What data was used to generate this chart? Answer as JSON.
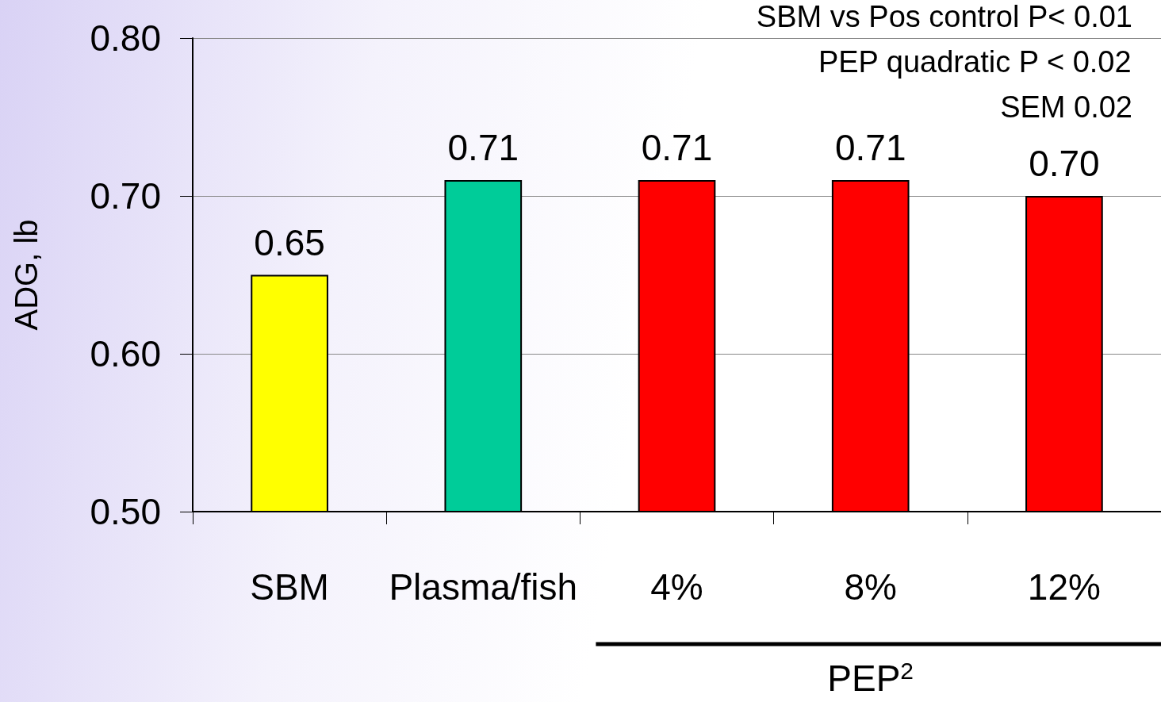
{
  "chart_data": {
    "type": "bar",
    "ylabel": "ADG, lb",
    "categories": [
      "SBM",
      "Plasma/fish",
      "4%",
      "8%",
      "12%"
    ],
    "values": [
      0.65,
      0.71,
      0.71,
      0.71,
      0.7
    ],
    "colors": [
      "#ffff00",
      "#00cc99",
      "#ff0000",
      "#ff0000",
      "#ff0000"
    ],
    "value_labels": [
      "0.65",
      "0.71",
      "0.71",
      "0.71",
      "0.70"
    ],
    "ylim": [
      0.5,
      0.8
    ],
    "yticks": [
      {
        "value": 0.5,
        "label": "0.50"
      },
      {
        "value": 0.6,
        "label": "0.60"
      },
      {
        "value": 0.7,
        "label": "0.70"
      },
      {
        "value": 0.8,
        "label": "0.80"
      }
    ],
    "grid": "y",
    "annotations": [
      "SBM vs Pos control P< 0.01",
      "PEP quadratic P < 0.02",
      "SEM 0.02",
      "PEP$^{2}$"
    ]
  }
}
